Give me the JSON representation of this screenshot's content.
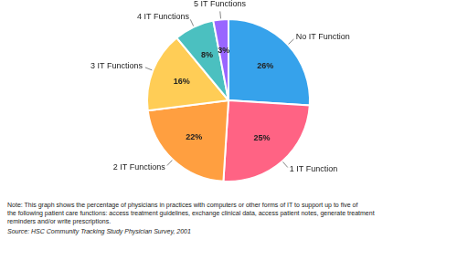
{
  "chart_data": {
    "type": "pie",
    "categories": [
      "No IT Function",
      "1 IT Function",
      "2 IT Functions",
      "3 IT Functions",
      "4 IT Functions",
      "5 IT Functions"
    ],
    "values": [
      26,
      25,
      22,
      16,
      8,
      3
    ],
    "value_labels": [
      "26%",
      "25%",
      "22%",
      "16%",
      "8%",
      "3%"
    ],
    "data_labels": true,
    "annotations": [
      "Note: This graph shows the percentage of physicians in practices with computers or other forms of IT to support up to five of\nthe following patient care functions: access treatment guidelines, exchange clinical data, access patient notes, generate treatment\nreminders and/or write prescriptions.",
      "Source: HSC Community Tracking Study Physician Survey, 2001"
    ]
  }
}
